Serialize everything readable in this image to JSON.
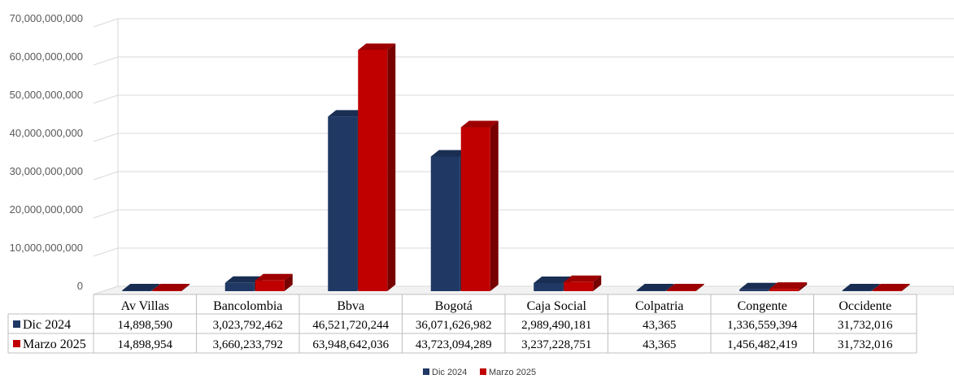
{
  "chart_data": {
    "type": "bar",
    "categories": [
      "Av Villas",
      "Bancolombia",
      "Bbva",
      "Bogotá",
      "Caja Social",
      "Colpatria",
      "Congente",
      "Occidente"
    ],
    "series": [
      {
        "name": "Dic 2024",
        "color": "#1f3864",
        "values": [
          14898590,
          3023792462,
          46521720244,
          36071626982,
          2989490181,
          43365,
          1336559394,
          31732016
        ],
        "labels": [
          "14,898,590",
          "3,023,792,462",
          "46,521,720,244",
          "36,071,626,982",
          "2,989,490,181",
          "43,365",
          "1,336,559,394",
          "31,732,016"
        ]
      },
      {
        "name": "Marzo 2025",
        "color": "#c00000",
        "values": [
          14898954,
          3660233792,
          63948642036,
          43723094289,
          3237228751,
          43365,
          1456482419,
          31732016
        ],
        "labels": [
          "14,898,954",
          "3,660,233,792",
          "63,948,642,036",
          "43,723,094,289",
          "3,237,228,751",
          "43,365",
          "1,456,482,419",
          "31,732,016"
        ]
      }
    ],
    "y_ticks": [
      "0",
      "10,000,000,000",
      "20,000,000,000",
      "30,000,000,000",
      "40,000,000,000",
      "50,000,000,000",
      "60,000,000,000",
      "70,000,000,000"
    ],
    "ylim": [
      0,
      70000000000
    ],
    "grid": true,
    "three_d": true,
    "legend_position": "bottom",
    "data_table": true
  }
}
